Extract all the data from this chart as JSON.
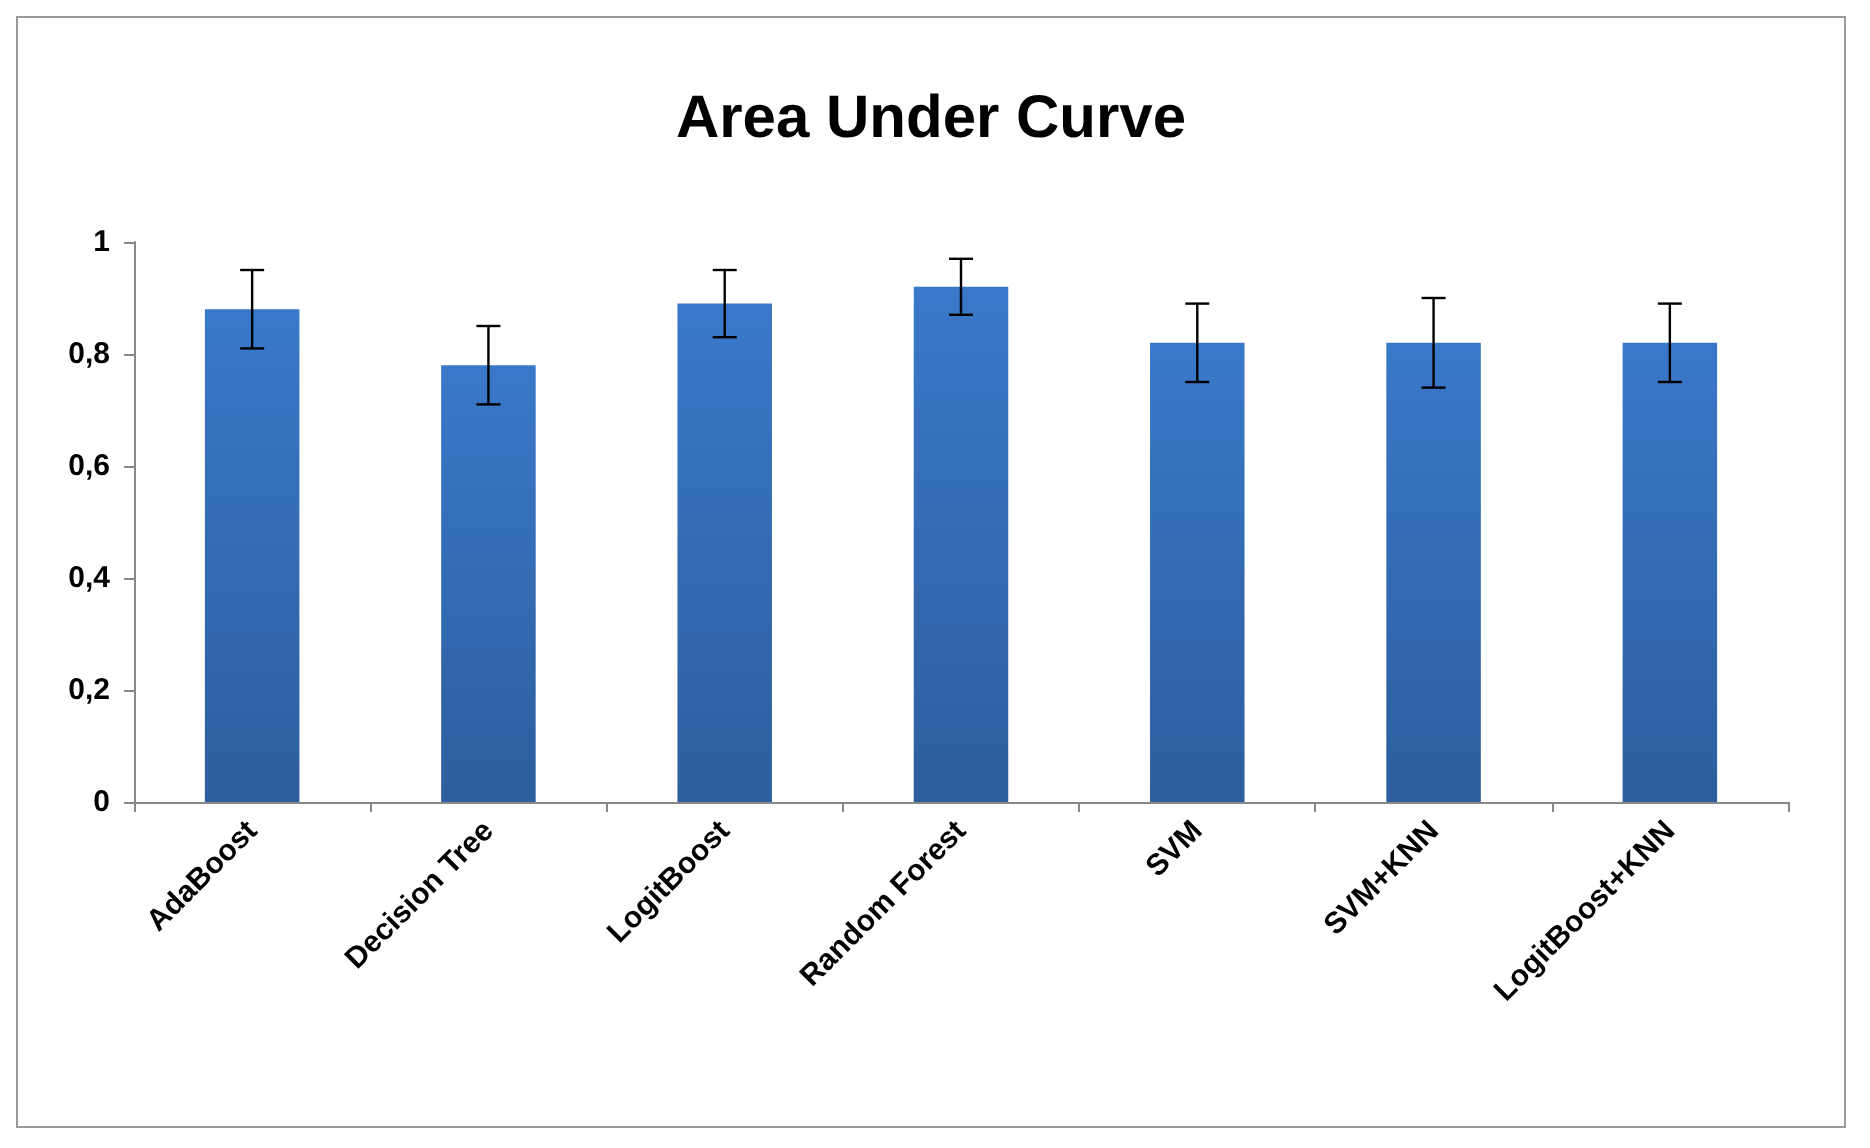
{
  "chart_data": {
    "type": "bar",
    "title": "Area Under Curve",
    "categories": [
      "AdaBoost",
      "Decision Tree",
      "LogitBoost",
      "Random Forest",
      "SVM",
      "SVM+KNN",
      "LogitBoost+KNN"
    ],
    "values": [
      0.88,
      0.78,
      0.89,
      0.92,
      0.82,
      0.82,
      0.82
    ],
    "errors": [
      0.07,
      0.07,
      0.06,
      0.05,
      0.07,
      0.08,
      0.07
    ],
    "color": "#3a78c9",
    "ylim": [
      0,
      1
    ],
    "yticks": [
      {
        "value": 0,
        "label": "0"
      },
      {
        "value": 0.2,
        "label": "0,2"
      },
      {
        "value": 0.4,
        "label": "0,4"
      },
      {
        "value": 0.6,
        "label": "0,6"
      },
      {
        "value": 0.8,
        "label": "0,8"
      },
      {
        "value": 1,
        "label": "1"
      }
    ],
    "grid": false
  }
}
